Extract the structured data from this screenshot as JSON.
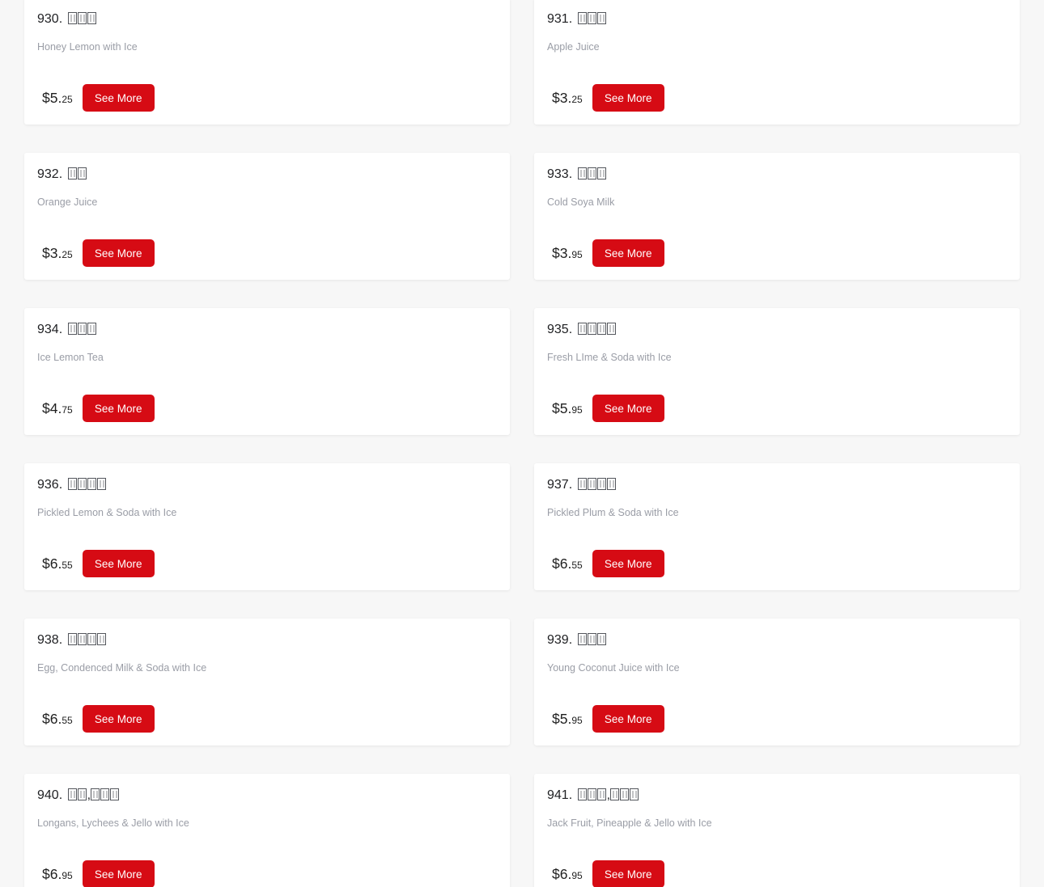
{
  "page": {
    "background_color": "#f7f7f7",
    "card_background": "#ffffff",
    "title_color": "#202124",
    "description_color": "#9a9da6"
  },
  "ui": {
    "see_more_label": "See More",
    "button_color": "#d60b14",
    "button_text_color": "#ffffff",
    "missing_glyph_icon": "tofu-box (unrenderable CJK character)"
  },
  "items": [
    {
      "number": "930.",
      "cjk_glyph_groups": [
        3
      ],
      "description": "Honey Lemon with Ice",
      "price_dollars": "$5.",
      "price_cents": "25"
    },
    {
      "number": "931.",
      "cjk_glyph_groups": [
        3
      ],
      "description": "Apple Juice",
      "price_dollars": "$3.",
      "price_cents": "25"
    },
    {
      "number": "932.",
      "cjk_glyph_groups": [
        2
      ],
      "description": "Orange Juice",
      "price_dollars": "$3.",
      "price_cents": "25"
    },
    {
      "number": "933.",
      "cjk_glyph_groups": [
        3
      ],
      "description": "Cold Soya Milk",
      "price_dollars": "$3.",
      "price_cents": "95"
    },
    {
      "number": "934.",
      "cjk_glyph_groups": [
        3
      ],
      "description": "Ice Lemon Tea",
      "price_dollars": "$4.",
      "price_cents": "75"
    },
    {
      "number": "935.",
      "cjk_glyph_groups": [
        4
      ],
      "description": "Fresh LIme & Soda with Ice",
      "price_dollars": "$5.",
      "price_cents": "95"
    },
    {
      "number": "936.",
      "cjk_glyph_groups": [
        4
      ],
      "description": "Pickled Lemon & Soda with Ice",
      "price_dollars": "$6.",
      "price_cents": "55"
    },
    {
      "number": "937.",
      "cjk_glyph_groups": [
        4
      ],
      "description": "Pickled Plum & Soda with Ice",
      "price_dollars": "$6.",
      "price_cents": "55"
    },
    {
      "number": "938.",
      "cjk_glyph_groups": [
        4
      ],
      "description": "Egg, Condenced Milk & Soda with Ice",
      "price_dollars": "$6.",
      "price_cents": "55"
    },
    {
      "number": "939.",
      "cjk_glyph_groups": [
        3
      ],
      "description": "Young Coconut Juice with Ice",
      "price_dollars": "$5.",
      "price_cents": "95"
    },
    {
      "number": "940.",
      "cjk_glyph_groups": [
        2,
        3
      ],
      "description": "Longans, Lychees & Jello with Ice",
      "price_dollars": "$6.",
      "price_cents": "95"
    },
    {
      "number": "941.",
      "cjk_glyph_groups": [
        3,
        3
      ],
      "description": "Jack Fruit, Pineapple & Jello with Ice",
      "price_dollars": "$6.",
      "price_cents": "95"
    }
  ]
}
